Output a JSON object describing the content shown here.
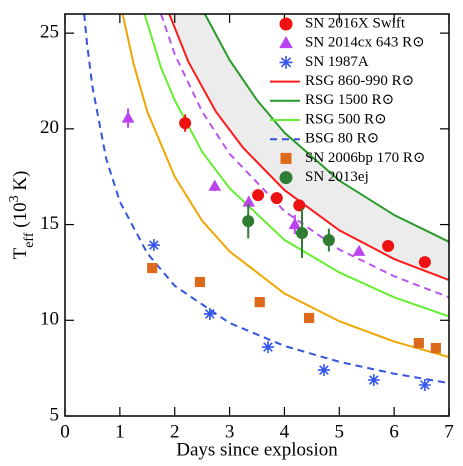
{
  "chart_data": {
    "type": "scatter",
    "x_label": "Days since explosion",
    "y_label": [
      "T",
      "eff",
      " (10",
      "3",
      " K)"
    ],
    "xlim": [
      0,
      7
    ],
    "ylim": [
      5,
      26
    ],
    "xticks": [
      0,
      1,
      2,
      3,
      4,
      5,
      6,
      7
    ],
    "yticks": [
      5,
      10,
      15,
      20,
      25
    ],
    "band": {
      "between": [
        3,
        4
      ],
      "color": "#ececec"
    },
    "series": [
      {
        "name": "SN 2016X Swift",
        "type": "scatter",
        "marker": "circle",
        "color": "#ee1111",
        "x": [
          2.19,
          3.52,
          3.86,
          4.27,
          5.89,
          6.56
        ],
        "values": [
          20.3,
          16.54,
          16.38,
          16.0,
          13.88,
          13.04
        ],
        "errors": [
          0.45,
          0.3,
          0.3,
          0.3,
          0.2,
          0.2
        ]
      },
      {
        "name": "SN 2014cx 643 R⊙",
        "type": "scatter",
        "marker": "triangle",
        "color": "#bb44f0",
        "x": [
          1.15,
          2.73,
          3.35,
          4.19,
          5.36
        ],
        "values": [
          20.56,
          17.0,
          16.17,
          15.0,
          13.6
        ],
        "errors": [
          0.5,
          0.25,
          0.3,
          0.5,
          0.2
        ]
      },
      {
        "name": "SN 1987A",
        "type": "scatter",
        "marker": "star",
        "color": "#3355ee",
        "x": [
          1.62,
          2.64,
          3.7,
          4.72,
          5.63,
          6.56
        ],
        "values": [
          13.93,
          10.33,
          8.6,
          7.4,
          6.88,
          6.62
        ]
      },
      {
        "name": "RSG 860-990 R⊙",
        "type": "line",
        "dash": false,
        "color": "#ff1a1a",
        "x": [
          1.9,
          2.25,
          2.75,
          3.25,
          4,
          5,
          6,
          7
        ],
        "values": [
          26.0,
          23.5,
          20.9,
          19.0,
          16.8,
          14.7,
          13.2,
          12.1
        ]
      },
      {
        "name": "RSG 1500 R⊙",
        "type": "line",
        "dash": false,
        "color": "#2a9a2a",
        "x": [
          2.55,
          3,
          3.5,
          4,
          5,
          6,
          7
        ],
        "values": [
          26.0,
          23.6,
          21.5,
          19.8,
          17.3,
          15.5,
          14.1
        ]
      },
      {
        "name": "RSG 500 R⊙",
        "type": "line",
        "dash": false,
        "color": "#66ee33",
        "x": [
          1.45,
          1.75,
          2,
          2.5,
          3,
          4,
          5,
          6,
          7
        ],
        "values": [
          26.0,
          23.2,
          21.5,
          18.8,
          16.9,
          14.2,
          12.5,
          11.2,
          10.2
        ]
      },
      {
        "name": "BSG 80 R⊙",
        "type": "line",
        "dash": true,
        "color": "#3355dd",
        "x": [
          0.35,
          0.4,
          0.5,
          0.75,
          1,
          1.5,
          2,
          3,
          4,
          5,
          6,
          7
        ],
        "values": [
          26.0,
          24.5,
          22.2,
          18.45,
          16.2,
          13.5,
          11.8,
          9.86,
          8.66,
          7.83,
          7.21,
          6.72
        ]
      },
      {
        "name": "SN 2006bp 170 R⊙",
        "type": "scatter",
        "marker": "square",
        "color": "#dd6a1a",
        "x": [
          1.59,
          2.46,
          3.55,
          4.45,
          6.45,
          6.76
        ],
        "values": [
          12.73,
          12.0,
          10.95,
          10.12,
          8.81,
          8.55
        ]
      },
      {
        "name": "SN 2013ej",
        "type": "scatter",
        "marker": "circle",
        "color": "#2e7d32",
        "x": [
          3.34,
          4.32,
          4.81
        ],
        "values": [
          15.18,
          14.56,
          14.19
        ],
        "errors": [
          0.9,
          1.3,
          0.6
        ]
      },
      {
        "type": "line",
        "dash": true,
        "color": "#bb55ee",
        "x": [
          1.75,
          2,
          2.5,
          3,
          4,
          5,
          6,
          7
        ],
        "values": [
          26.0,
          23.9,
          20.9,
          18.7,
          15.7,
          13.7,
          12.3,
          11.2
        ]
      },
      {
        "type": "line",
        "dash": false,
        "color": "#f0a500",
        "x": [
          1.05,
          1.25,
          1.5,
          2,
          2.5,
          3,
          4,
          5,
          6,
          7
        ],
        "values": [
          26.0,
          23.4,
          20.9,
          17.5,
          15.2,
          13.6,
          11.4,
          9.95,
          8.89,
          8.08
        ]
      }
    ]
  }
}
